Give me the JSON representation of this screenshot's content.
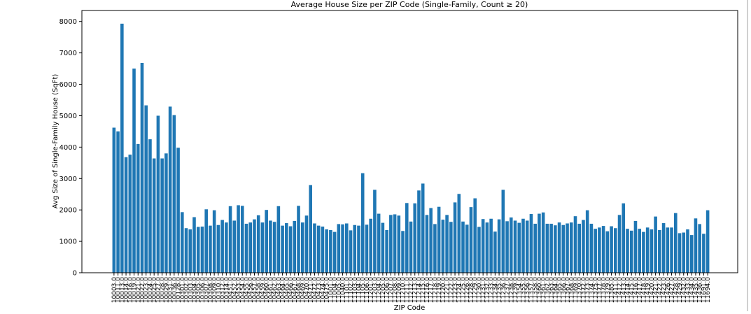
{
  "chart_data": {
    "type": "bar",
    "title": "Average House Size per ZIP Code (Single-Family, Count ≥ 20)",
    "xlabel": "ZIP Code",
    "ylabel": "Avg Size of Single-Family House (SqFt)",
    "color": "#1f77b4",
    "ylim": [
      0,
      8350
    ],
    "yticks": [
      0,
      1000,
      2000,
      3000,
      4000,
      5000,
      6000,
      7000,
      8000
    ],
    "categories": [
      "10003.0",
      "10011.0",
      "10013.0",
      "10014.0",
      "10016.0",
      "10019.0",
      "10021.0",
      "10022.0",
      "10023.0",
      "10024.0",
      "10025.0",
      "10027.0",
      "10028.0",
      "10029.0",
      "10031.0",
      "10036.0",
      "10128.0",
      "10301.0",
      "10302.0",
      "10303.0",
      "10304.0",
      "10305.0",
      "10306.0",
      "10307.0",
      "10308.0",
      "10309.0",
      "10310.0",
      "10312.0",
      "10314.0",
      "10451.0",
      "10452.0",
      "10453.0",
      "10454.0",
      "10455.0",
      "10456.0",
      "10457.0",
      "10458.0",
      "10459.0",
      "10460.0",
      "10461.0",
      "10462.0",
      "10463.0",
      "10464.0",
      "10465.0",
      "10466.0",
      "10467.0",
      "10468.0",
      "10469.0",
      "10470.0",
      "10471.0",
      "10472.0",
      "10473.0",
      "10474.0",
      "10475.0",
      "11001.0",
      "11004.0",
      "11005.0",
      "11040.0",
      "11101.0",
      "11102.0",
      "11103.0",
      "11104.0",
      "11105.0",
      "11106.0",
      "11201.0",
      "11203.0",
      "11204.0",
      "11205.0",
      "11206.0",
      "11207.0",
      "11208.0",
      "11209.0",
      "11210.0",
      "11211.0",
      "11212.0",
      "11213.0",
      "11214.0",
      "11215.0",
      "11216.0",
      "11217.0",
      "11218.0",
      "11219.0",
      "11220.0",
      "11221.0",
      "11222.0",
      "11223.0",
      "11224.0",
      "11225.0",
      "11226.0",
      "11228.0",
      "11229.0",
      "11230.0",
      "11231.0",
      "11232.0",
      "11233.0",
      "11234.0",
      "11235.0",
      "11236.0",
      "11237.0",
      "11238.0",
      "11239.0",
      "11354.0",
      "11355.0",
      "11356.0",
      "11357.0",
      "11358.0",
      "11360.0",
      "11361.0",
      "11362.0",
      "11363.0",
      "11364.0",
      "11365.0",
      "11366.0",
      "11367.0",
      "11368.0",
      "11369.0",
      "11370.0",
      "11372.0",
      "11373.0",
      "11374.0",
      "11375.0",
      "11377.0",
      "11378.0",
      "11379.0",
      "11385.0",
      "11411.0",
      "11412.0",
      "11413.0",
      "11414.0",
      "11415.0",
      "11416.0",
      "11417.0",
      "11418.0",
      "11419.0",
      "11420.0",
      "11421.0",
      "11422.0",
      "11423.0",
      "11426.0",
      "11427.0",
      "11428.0",
      "11429.0",
      "11432.0",
      "11433.0",
      "11434.0",
      "11435.0",
      "11436.0",
      "11691.0",
      "11694.0"
    ],
    "values": [
      4620,
      4500,
      7930,
      3680,
      3760,
      6500,
      4100,
      6680,
      5330,
      4250,
      3640,
      5000,
      3640,
      3800,
      5290,
      5020,
      3980,
      1930,
      1420,
      1380,
      1770,
      1460,
      1470,
      2020,
      1500,
      1990,
      1520,
      1680,
      1600,
      2120,
      1660,
      2150,
      2130,
      1560,
      1600,
      1700,
      1830,
      1600,
      2000,
      1660,
      1620,
      2120,
      1500,
      1580,
      1480,
      1650,
      2130,
      1600,
      1820,
      2790,
      1570,
      1500,
      1470,
      1380,
      1360,
      1300,
      1550,
      1540,
      1570,
      1350,
      1520,
      1500,
      3170,
      1530,
      1720,
      2640,
      1880,
      1590,
      1360,
      1840,
      1860,
      1820,
      1330,
      2220,
      1630,
      2210,
      2620,
      2840,
      1840,
      2060,
      1550,
      2100,
      1690,
      1840,
      1620,
      2240,
      2510,
      1630,
      1530,
      2090,
      2370,
      1460,
      1710,
      1600,
      1720,
      1310,
      1700,
      2640,
      1640,
      1760,
      1660,
      1590,
      1720,
      1660,
      1870,
      1560,
      1880,
      1920,
      1560,
      1560,
      1510,
      1600,
      1520,
      1570,
      1600,
      1800,
      1560,
      1680,
      1990,
      1560,
      1400,
      1440,
      1490,
      1320,
      1480,
      1420,
      1840,
      2210,
      1400,
      1340,
      1650,
      1400,
      1300,
      1440,
      1380,
      1790,
      1360,
      1580,
      1440,
      1440,
      1900,
      1260,
      1280,
      1380,
      1200,
      1730,
      1550,
      1240,
      1990
    ]
  }
}
